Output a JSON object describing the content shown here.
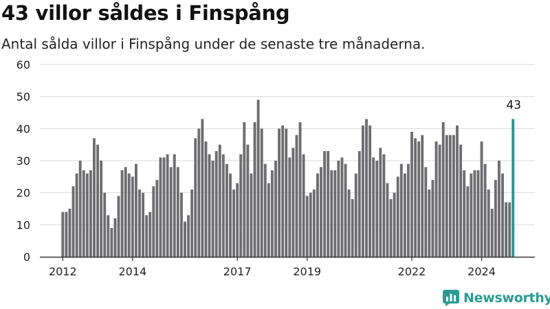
{
  "title": "43 villor såldes i Finspång",
  "subtitle": "Antal sålda villor i Finspång under de senaste tre månaderna.",
  "brand": {
    "name": "Newsworthy",
    "color": "#2a9d93",
    "icon": "bar-chart-logo-icon"
  },
  "colors": {
    "bar": "#6e6d71",
    "highlight": "#1e9a93",
    "grid": "#d9d9d9",
    "axis": "#333333"
  },
  "chart_data": {
    "type": "bar",
    "title": "43 villor såldes i Finspång",
    "subtitle": "Antal sålda villor i Finspång under de senaste tre månaderna.",
    "xlabel": "",
    "ylabel": "",
    "ylim": [
      0,
      60
    ],
    "yticks": [
      0,
      10,
      20,
      30,
      40,
      50,
      60
    ],
    "xticks": [
      {
        "label": "2012",
        "at_index": 0
      },
      {
        "label": "2014",
        "at_index": 20
      },
      {
        "label": "2017",
        "at_index": 50
      },
      {
        "label": "2019",
        "at_index": 70
      },
      {
        "label": "2022",
        "at_index": 100
      },
      {
        "label": "2024",
        "at_index": 120
      }
    ],
    "grid": true,
    "legend": "none",
    "highlight": {
      "index": 129,
      "label": "43"
    },
    "values": [
      14,
      14,
      15,
      22,
      26,
      30,
      27,
      26,
      27,
      37,
      35,
      30,
      20,
      13,
      9,
      12,
      19,
      27,
      28,
      26,
      25,
      29,
      21,
      20,
      13,
      14,
      22,
      24,
      31,
      31,
      32,
      28,
      32,
      28,
      20,
      11,
      13,
      21,
      37,
      40,
      43,
      36,
      32,
      30,
      33,
      35,
      32,
      29,
      26,
      21,
      23,
      32,
      42,
      35,
      26,
      42,
      49,
      40,
      29,
      23,
      27,
      30,
      40,
      41,
      40,
      31,
      34,
      38,
      42,
      32,
      19,
      20,
      21,
      26,
      28,
      33,
      33,
      27,
      27,
      30,
      31,
      29,
      21,
      18,
      26,
      33,
      41,
      43,
      41,
      31,
      30,
      34,
      32,
      23,
      18,
      20,
      25,
      29,
      26,
      29,
      39,
      37,
      36,
      38,
      28,
      21,
      24,
      36,
      35,
      42,
      38,
      38,
      38,
      41,
      35,
      27,
      22,
      26,
      27,
      27,
      36,
      29,
      21,
      15,
      24,
      30,
      26,
      17,
      17,
      43
    ]
  }
}
